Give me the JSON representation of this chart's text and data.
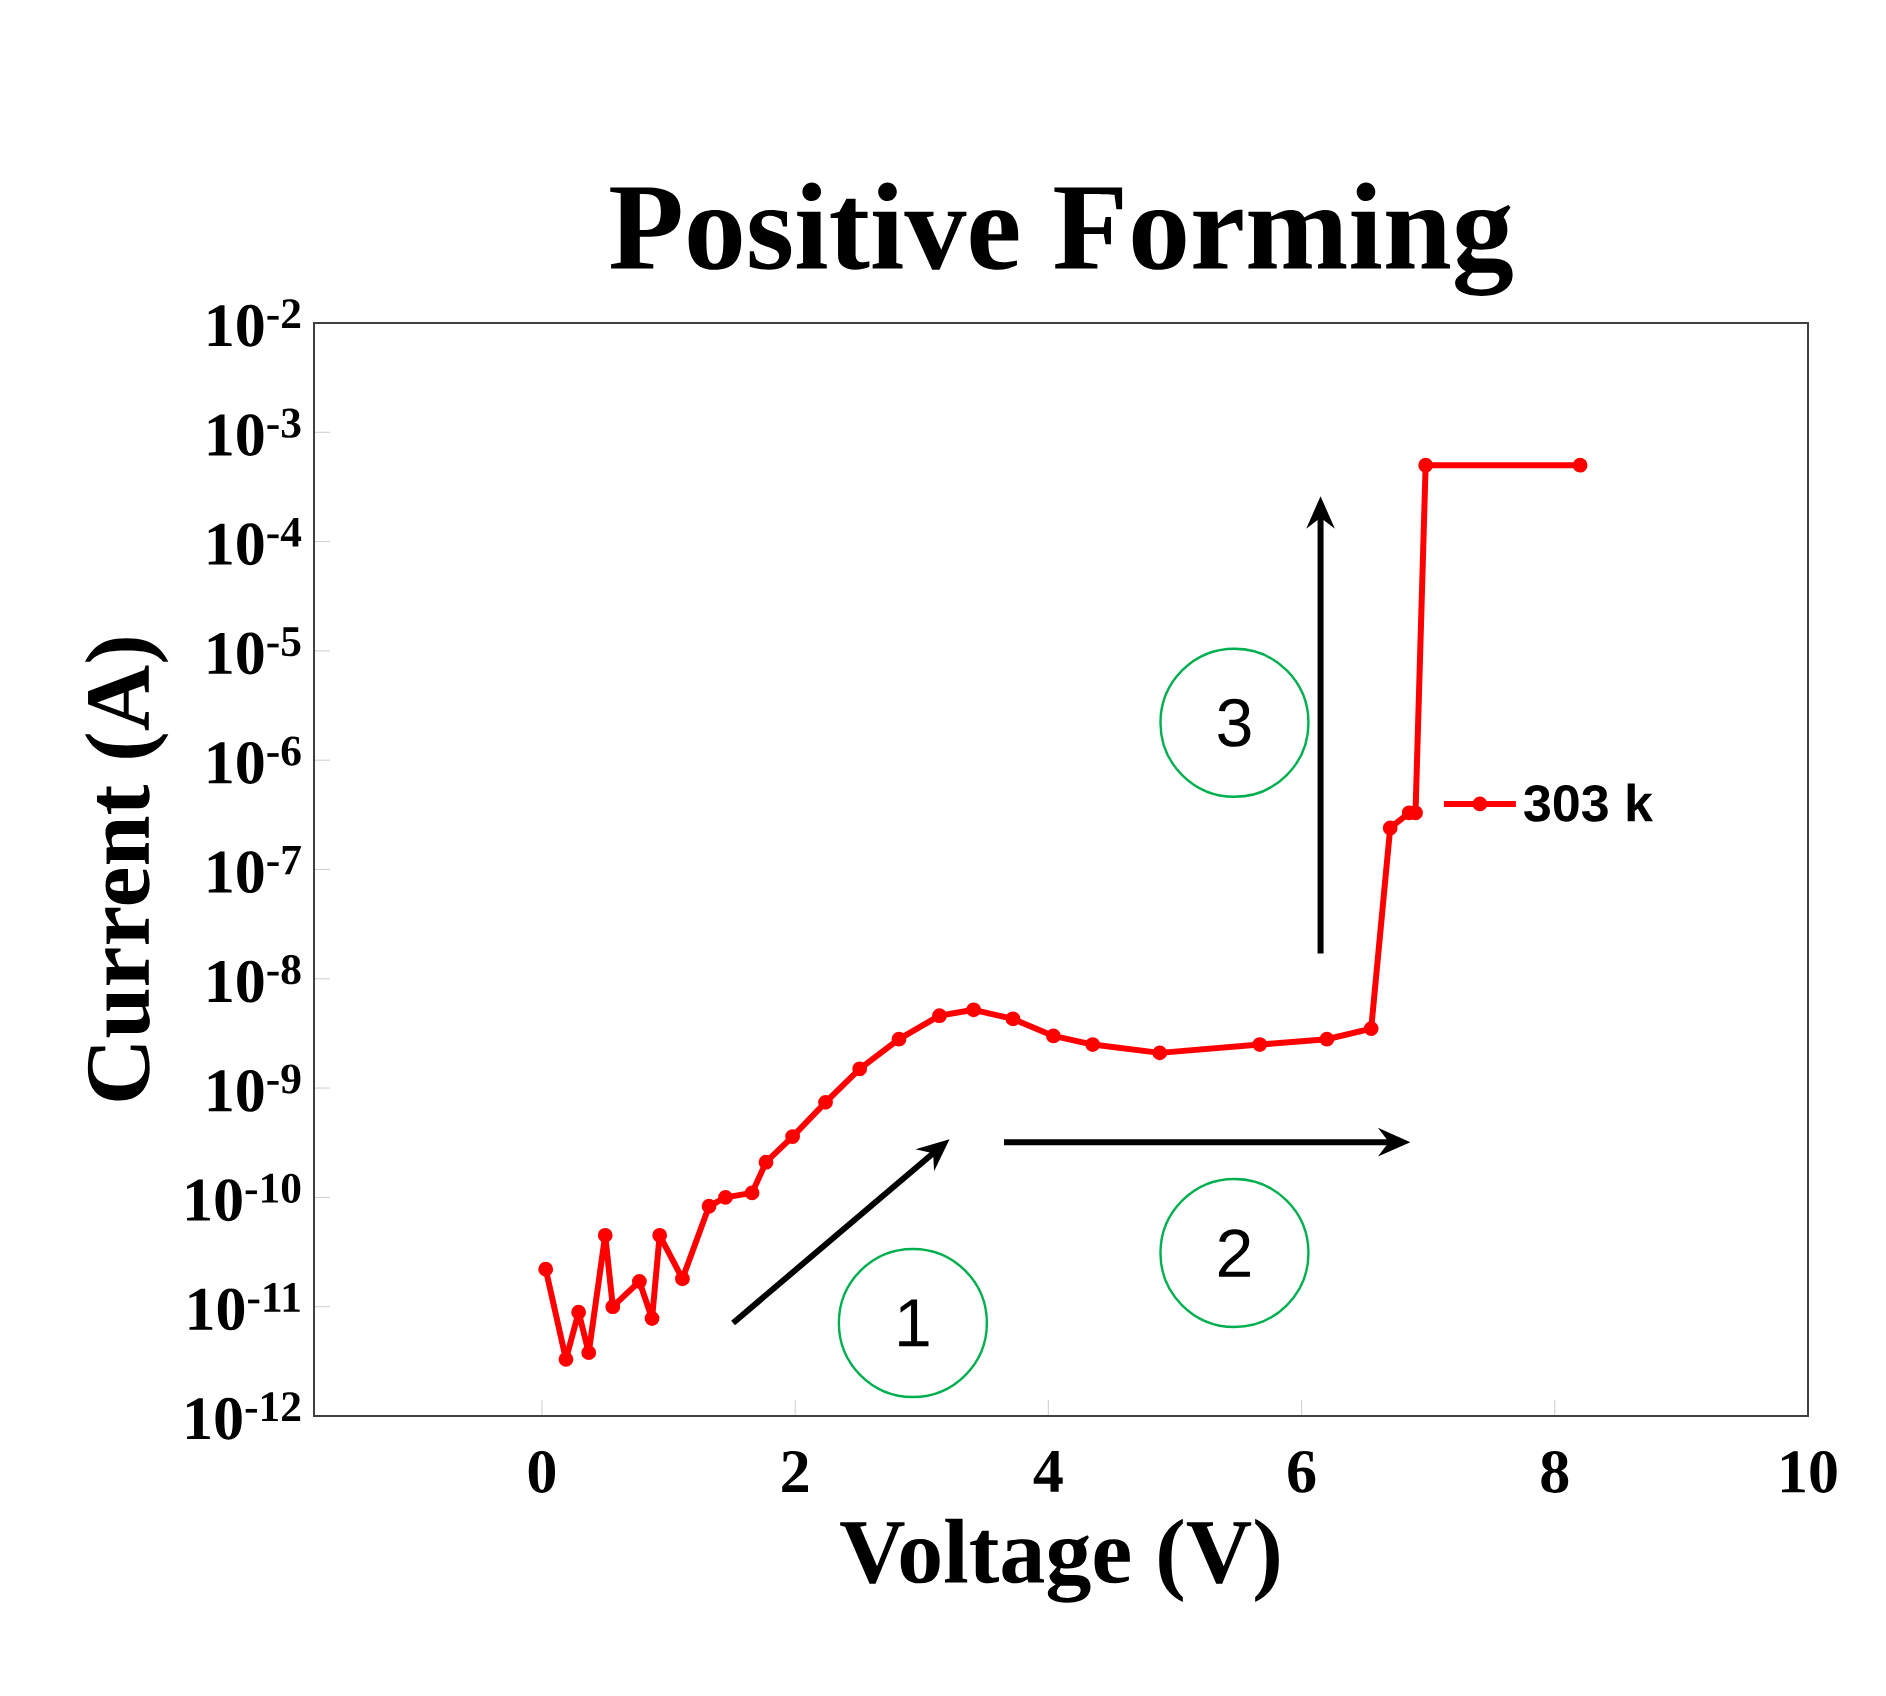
{
  "chart_data": {
    "type": "line",
    "title": "Positive Forming",
    "xlabel": "Voltage (V)",
    "ylabel": "Current (A)",
    "x": [
      0.03,
      0.19,
      0.29,
      0.37,
      0.5,
      0.56,
      0.77,
      0.87,
      0.93,
      1.11,
      1.32,
      1.45,
      1.66,
      1.77,
      1.98,
      2.24,
      2.51,
      2.82,
      3.14,
      3.41,
      3.72,
      4.04,
      4.35,
      4.88,
      5.67,
      6.2,
      6.55,
      6.7,
      6.85,
      6.9,
      6.98,
      8.2
    ],
    "series": [
      {
        "name": "303 k",
        "color": "#ff0000",
        "values": [
          2.2e-11,
          3.3e-12,
          8.9e-12,
          3.8e-12,
          4.5e-11,
          1e-11,
          1.7e-11,
          7.8e-12,
          4.5e-11,
          1.8e-11,
          8.3e-11,
          1e-10,
          1.1e-10,
          2.1e-10,
          3.6e-10,
          7.4e-10,
          1.5e-09,
          2.8e-09,
          4.6e-09,
          5.2e-09,
          4.3e-09,
          3e-09,
          2.5e-09,
          2.1e-09,
          2.5e-09,
          2.8e-09,
          3.5e-09,
          2.4e-07,
          3.3e-07,
          3.3e-07,
          0.0005,
          0.0005
        ]
      }
    ],
    "log": "y",
    "marker": "circle",
    "line_style": "solid",
    "legend": "right",
    "xlim": [
      -1.8,
      10
    ],
    "xticks": [
      0,
      2,
      4,
      6,
      8,
      10
    ],
    "ylim": [
      1e-12,
      0.01
    ],
    "yticks": [
      {
        "value": 1e-12,
        "label": "10$^{-12}$"
      },
      {
        "value": 1e-11,
        "label": "10$^{-11}$"
      },
      {
        "value": 1e-10,
        "label": "10$^{-10}$"
      },
      {
        "value": 1e-09,
        "label": "10$^{-9}$"
      },
      {
        "value": 1e-08,
        "label": "10$^{-8}$"
      },
      {
        "value": 1e-07,
        "label": "10$^{-7}$"
      },
      {
        "value": 1e-06,
        "label": "10$^{-6}$"
      },
      {
        "value": 1e-05,
        "label": "10$^{-5}$"
      },
      {
        "value": 0.0001,
        "label": "10$^{-4}$"
      },
      {
        "value": 0.001,
        "label": "10$^{-3}$"
      },
      {
        "value": 0.01,
        "label": "10$^{-2}$"
      }
    ],
    "annotations": [
      "1",
      "2",
      "3"
    ]
  }
}
